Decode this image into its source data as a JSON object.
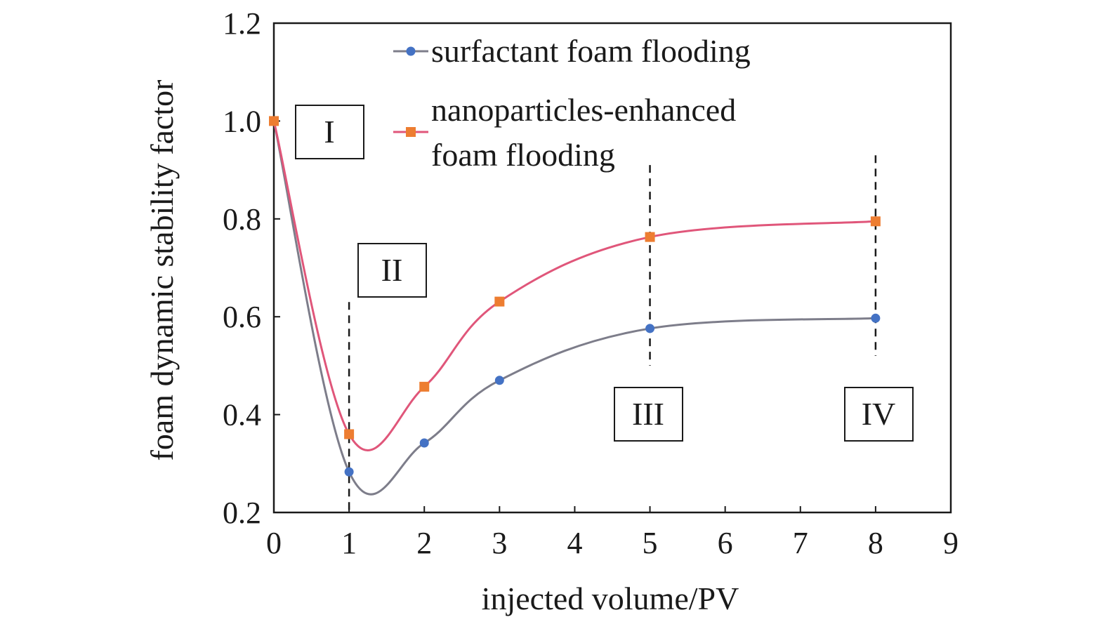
{
  "chart_data": {
    "type": "line",
    "xlabel": "injected volume/PV",
    "ylabel": "foam dynamic stability factor",
    "xlim": [
      0,
      9
    ],
    "ylim": [
      0.2,
      1.2
    ],
    "x_ticks": [
      "0",
      "1",
      "2",
      "3",
      "4",
      "5",
      "6",
      "7",
      "8",
      "9"
    ],
    "y_ticks": [
      "0.2",
      "0.4",
      "0.6",
      "0.8",
      "1.0",
      "1.2"
    ],
    "grid": false,
    "legend_position": "top",
    "series": [
      {
        "name": "surfactant foam flooding",
        "color": "#4472c4",
        "line_color": "#7d7d8a",
        "marker": "circle",
        "x": [
          0,
          1,
          2,
          3,
          5,
          8
        ],
        "y": [
          1.0,
          0.283,
          0.342,
          0.47,
          0.576,
          0.597
        ]
      },
      {
        "name_lines": [
          "nanoparticles-enhanced",
          "foam flooding"
        ],
        "color": "#ed7d31",
        "line_color": "#e0567a",
        "marker": "square",
        "x": [
          0,
          1,
          2,
          3,
          5,
          8
        ],
        "y": [
          1.0,
          0.36,
          0.457,
          0.631,
          0.763,
          0.795
        ]
      }
    ],
    "annotations": {
      "regions": [
        "I",
        "II",
        "III",
        "IV"
      ],
      "dashed_lines_x": [
        1,
        5,
        8
      ]
    }
  }
}
